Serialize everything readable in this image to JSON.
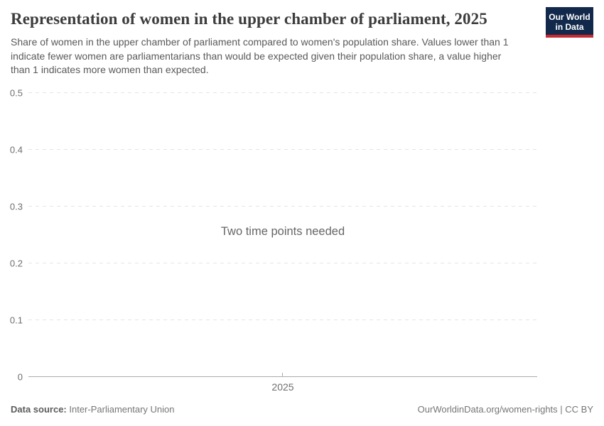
{
  "header": {
    "title": "Representation of women in the upper chamber of parliament, 2025",
    "subtitle": "Share of women in the upper chamber of parliament compared to women's population share. Values lower than 1 indicate fewer women are parliamentarians than would be expected given their population share, a value higher than 1 indicates more women than expected.",
    "logo": {
      "line1": "Our World",
      "line2": "in Data"
    }
  },
  "chart_data": {
    "type": "line",
    "title": "Representation of women in the upper chamber of parliament, 2025",
    "note": "Two time points needed",
    "series": [],
    "x": [
      "2025"
    ],
    "xticks": [
      "2025"
    ],
    "ylim": [
      0,
      0.5
    ],
    "yticks": [
      {
        "value": 0,
        "label": "0"
      },
      {
        "value": 0.1,
        "label": "0.1"
      },
      {
        "value": 0.2,
        "label": "0.2"
      },
      {
        "value": 0.3,
        "label": "0.3"
      },
      {
        "value": 0.4,
        "label": "0.4"
      },
      {
        "value": 0.5,
        "label": "0.5"
      }
    ],
    "grid": "horizontal-dashed",
    "legend": "none"
  },
  "footer": {
    "datasource_label": "Data source:",
    "datasource_value": "Inter-Parliamentary Union",
    "attribution": "OurWorldinData.org/women-rights | CC BY"
  },
  "colors": {
    "title_text": "#3c3c3c",
    "subtitle_text": "#595959",
    "axis_text": "#6e6e6e",
    "gridline": "#e4e4e4",
    "axis_line": "#ababab",
    "note_text": "#666666",
    "logo_background": "#12294b",
    "logo_underline": "#c62a30",
    "footer_text": "#757575"
  }
}
